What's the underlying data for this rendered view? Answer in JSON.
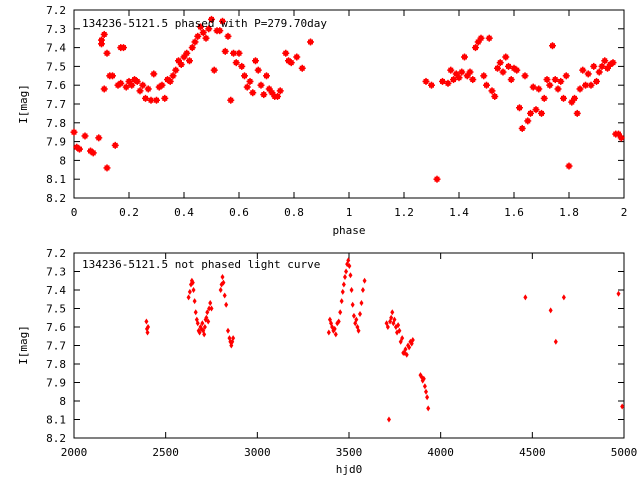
{
  "chart_data": [
    {
      "type": "scatter",
      "title": "134236-5121.5 phased with P=279.70day",
      "xlabel": "phase",
      "ylabel": "I[mag]",
      "xlim": [
        0,
        2
      ],
      "ylim": [
        8.2,
        7.2
      ],
      "y_inverted": true,
      "grid": false,
      "marker": "star",
      "color": "#ff0000",
      "x_ticks": [
        "0",
        "0.2",
        "0.4",
        "0.6",
        "0.8",
        "1",
        "1.2",
        "1.4",
        "1.6",
        "1.8",
        "2"
      ],
      "y_ticks": [
        "7.2",
        "7.3",
        "7.4",
        "7.5",
        "7.6",
        "7.7",
        "7.8",
        "7.9",
        "8",
        "8.1",
        "8.2"
      ],
      "points": [
        [
          0.0,
          7.85
        ],
        [
          0.01,
          7.93
        ],
        [
          0.02,
          7.94
        ],
        [
          0.04,
          7.87
        ],
        [
          0.06,
          7.95
        ],
        [
          0.07,
          7.96
        ],
        [
          0.09,
          7.88
        ],
        [
          0.1,
          7.36
        ],
        [
          0.1,
          7.38
        ],
        [
          0.11,
          7.33
        ],
        [
          0.11,
          7.62
        ],
        [
          0.12,
          7.43
        ],
        [
          0.12,
          8.04
        ],
        [
          0.13,
          7.55
        ],
        [
          0.14,
          7.55
        ],
        [
          0.15,
          7.92
        ],
        [
          0.16,
          7.6
        ],
        [
          0.17,
          7.4
        ],
        [
          0.17,
          7.59
        ],
        [
          0.18,
          7.4
        ],
        [
          0.19,
          7.61
        ],
        [
          0.2,
          7.58
        ],
        [
          0.21,
          7.6
        ],
        [
          0.22,
          7.57
        ],
        [
          0.23,
          7.58
        ],
        [
          0.24,
          7.63
        ],
        [
          0.25,
          7.6
        ],
        [
          0.26,
          7.67
        ],
        [
          0.27,
          7.62
        ],
        [
          0.28,
          7.68
        ],
        [
          0.29,
          7.54
        ],
        [
          0.3,
          7.68
        ],
        [
          0.31,
          7.61
        ],
        [
          0.32,
          7.6
        ],
        [
          0.33,
          7.67
        ],
        [
          0.34,
          7.57
        ],
        [
          0.35,
          7.58
        ],
        [
          0.36,
          7.55
        ],
        [
          0.37,
          7.52
        ],
        [
          0.38,
          7.47
        ],
        [
          0.39,
          7.49
        ],
        [
          0.4,
          7.45
        ],
        [
          0.41,
          7.43
        ],
        [
          0.42,
          7.47
        ],
        [
          0.43,
          7.4
        ],
        [
          0.44,
          7.37
        ],
        [
          0.45,
          7.34
        ],
        [
          0.46,
          7.29
        ],
        [
          0.47,
          7.32
        ],
        [
          0.48,
          7.35
        ],
        [
          0.49,
          7.3
        ],
        [
          0.5,
          7.25
        ],
        [
          0.51,
          7.52
        ],
        [
          0.52,
          7.31
        ],
        [
          0.53,
          7.31
        ],
        [
          0.54,
          7.26
        ],
        [
          0.55,
          7.42
        ],
        [
          0.56,
          7.34
        ],
        [
          0.57,
          7.68
        ],
        [
          0.58,
          7.43
        ],
        [
          0.59,
          7.48
        ],
        [
          0.6,
          7.43
        ],
        [
          0.61,
          7.5
        ],
        [
          0.62,
          7.55
        ],
        [
          0.63,
          7.61
        ],
        [
          0.64,
          7.58
        ],
        [
          0.65,
          7.64
        ],
        [
          0.66,
          7.47
        ],
        [
          0.67,
          7.52
        ],
        [
          0.68,
          7.6
        ],
        [
          0.69,
          7.65
        ],
        [
          0.7,
          7.55
        ],
        [
          0.71,
          7.62
        ],
        [
          0.72,
          7.64
        ],
        [
          0.73,
          7.66
        ],
        [
          0.74,
          7.66
        ],
        [
          0.75,
          7.63
        ],
        [
          0.77,
          7.43
        ],
        [
          0.78,
          7.47
        ],
        [
          0.79,
          7.48
        ],
        [
          0.81,
          7.45
        ],
        [
          0.83,
          7.51
        ],
        [
          0.86,
          7.37
        ],
        [
          1.28,
          7.58
        ],
        [
          1.3,
          7.6
        ],
        [
          1.32,
          8.1
        ],
        [
          1.34,
          7.58
        ],
        [
          1.36,
          7.59
        ],
        [
          1.37,
          7.52
        ],
        [
          1.38,
          7.57
        ],
        [
          1.39,
          7.54
        ],
        [
          1.4,
          7.56
        ],
        [
          1.41,
          7.53
        ],
        [
          1.42,
          7.45
        ],
        [
          1.43,
          7.55
        ],
        [
          1.44,
          7.53
        ],
        [
          1.45,
          7.57
        ],
        [
          1.46,
          7.4
        ],
        [
          1.47,
          7.37
        ],
        [
          1.48,
          7.35
        ],
        [
          1.49,
          7.55
        ],
        [
          1.5,
          7.6
        ],
        [
          1.51,
          7.35
        ],
        [
          1.52,
          7.63
        ],
        [
          1.53,
          7.66
        ],
        [
          1.54,
          7.51
        ],
        [
          1.55,
          7.48
        ],
        [
          1.56,
          7.53
        ],
        [
          1.57,
          7.45
        ],
        [
          1.58,
          7.5
        ],
        [
          1.59,
          7.57
        ],
        [
          1.6,
          7.51
        ],
        [
          1.61,
          7.52
        ],
        [
          1.62,
          7.72
        ],
        [
          1.63,
          7.83
        ],
        [
          1.64,
          7.55
        ],
        [
          1.65,
          7.79
        ],
        [
          1.66,
          7.75
        ],
        [
          1.67,
          7.61
        ],
        [
          1.68,
          7.73
        ],
        [
          1.69,
          7.62
        ],
        [
          1.7,
          7.75
        ],
        [
          1.71,
          7.67
        ],
        [
          1.72,
          7.57
        ],
        [
          1.73,
          7.6
        ],
        [
          1.74,
          7.39
        ],
        [
          1.75,
          7.57
        ],
        [
          1.76,
          7.62
        ],
        [
          1.77,
          7.58
        ],
        [
          1.78,
          7.67
        ],
        [
          1.79,
          7.55
        ],
        [
          1.8,
          8.03
        ],
        [
          1.81,
          7.69
        ],
        [
          1.82,
          7.67
        ],
        [
          1.83,
          7.75
        ],
        [
          1.84,
          7.62
        ],
        [
          1.85,
          7.52
        ],
        [
          1.86,
          7.6
        ],
        [
          1.87,
          7.54
        ],
        [
          1.88,
          7.6
        ],
        [
          1.89,
          7.5
        ],
        [
          1.9,
          7.58
        ],
        [
          1.91,
          7.53
        ],
        [
          1.92,
          7.5
        ],
        [
          1.93,
          7.47
        ],
        [
          1.94,
          7.51
        ],
        [
          1.95,
          7.49
        ],
        [
          1.96,
          7.48
        ],
        [
          1.97,
          7.86
        ],
        [
          1.98,
          7.86
        ],
        [
          1.99,
          7.88
        ]
      ]
    },
    {
      "type": "scatter",
      "title": "134236-5121.5 not phased light curve",
      "xlabel": "hjd0",
      "ylabel": "I[mag]",
      "xlim": [
        2000,
        5000
      ],
      "ylim": [
        8.2,
        7.2
      ],
      "y_inverted": true,
      "grid": false,
      "marker": "diamond",
      "color": "#ff0000",
      "x_ticks": [
        "2000",
        "2500",
        "3000",
        "3500",
        "4000",
        "4500",
        "5000"
      ],
      "y_ticks": [
        "7.2",
        "7.3",
        "7.4",
        "7.5",
        "7.6",
        "7.7",
        "7.8",
        "7.9",
        "8",
        "8.1",
        "8.2"
      ],
      "points": [
        [
          2395,
          7.57
        ],
        [
          2398,
          7.61
        ],
        [
          2401,
          7.63
        ],
        [
          2404,
          7.6
        ],
        [
          2625,
          7.44
        ],
        [
          2632,
          7.41
        ],
        [
          2638,
          7.37
        ],
        [
          2643,
          7.35
        ],
        [
          2648,
          7.36
        ],
        [
          2652,
          7.4
        ],
        [
          2658,
          7.46
        ],
        [
          2664,
          7.52
        ],
        [
          2670,
          7.56
        ],
        [
          2675,
          7.58
        ],
        [
          2680,
          7.62
        ],
        [
          2685,
          7.63
        ],
        [
          2690,
          7.6
        ],
        [
          2695,
          7.61
        ],
        [
          2700,
          7.58
        ],
        [
          2705,
          7.62
        ],
        [
          2710,
          7.64
        ],
        [
          2714,
          7.6
        ],
        [
          2718,
          7.56
        ],
        [
          2722,
          7.55
        ],
        [
          2727,
          7.52
        ],
        [
          2732,
          7.57
        ],
        [
          2737,
          7.5
        ],
        [
          2743,
          7.47
        ],
        [
          2750,
          7.5
        ],
        [
          2800,
          7.4
        ],
        [
          2805,
          7.37
        ],
        [
          2810,
          7.33
        ],
        [
          2815,
          7.36
        ],
        [
          2822,
          7.43
        ],
        [
          2830,
          7.48
        ],
        [
          2840,
          7.62
        ],
        [
          2848,
          7.66
        ],
        [
          2853,
          7.68
        ],
        [
          2858,
          7.7
        ],
        [
          2863,
          7.68
        ],
        [
          2868,
          7.66
        ],
        [
          3390,
          7.63
        ],
        [
          3396,
          7.56
        ],
        [
          3402,
          7.58
        ],
        [
          3408,
          7.6
        ],
        [
          3415,
          7.62
        ],
        [
          3422,
          7.61
        ],
        [
          3428,
          7.64
        ],
        [
          3436,
          7.58
        ],
        [
          3444,
          7.57
        ],
        [
          3452,
          7.52
        ],
        [
          3460,
          7.46
        ],
        [
          3466,
          7.41
        ],
        [
          3472,
          7.37
        ],
        [
          3478,
          7.33
        ],
        [
          3484,
          7.3
        ],
        [
          3490,
          7.26
        ],
        [
          3496,
          7.24
        ],
        [
          3502,
          7.27
        ],
        [
          3508,
          7.32
        ],
        [
          3514,
          7.4
        ],
        [
          3520,
          7.48
        ],
        [
          3527,
          7.54
        ],
        [
          3534,
          7.58
        ],
        [
          3540,
          7.56
        ],
        [
          3546,
          7.6
        ],
        [
          3552,
          7.62
        ],
        [
          3560,
          7.53
        ],
        [
          3568,
          7.47
        ],
        [
          3576,
          7.4
        ],
        [
          3585,
          7.35
        ],
        [
          3705,
          7.58
        ],
        [
          3712,
          7.6
        ],
        [
          3718,
          8.1
        ],
        [
          3724,
          7.57
        ],
        [
          3730,
          7.55
        ],
        [
          3736,
          7.52
        ],
        [
          3742,
          7.58
        ],
        [
          3748,
          7.56
        ],
        [
          3756,
          7.6
        ],
        [
          3762,
          7.63
        ],
        [
          3768,
          7.59
        ],
        [
          3775,
          7.62
        ],
        [
          3782,
          7.68
        ],
        [
          3790,
          7.66
        ],
        [
          3796,
          7.74
        ],
        [
          3802,
          7.74
        ],
        [
          3808,
          7.72
        ],
        [
          3815,
          7.75
        ],
        [
          3822,
          7.7
        ],
        [
          3828,
          7.71
        ],
        [
          3835,
          7.68
        ],
        [
          3842,
          7.69
        ],
        [
          3848,
          7.67
        ],
        [
          3890,
          7.86
        ],
        [
          3896,
          7.87
        ],
        [
          3902,
          7.89
        ],
        [
          3908,
          7.88
        ],
        [
          3914,
          7.92
        ],
        [
          3920,
          7.95
        ],
        [
          3926,
          7.98
        ],
        [
          3932,
          8.04
        ],
        [
          4462,
          7.44
        ],
        [
          4600,
          7.51
        ],
        [
          4628,
          7.68
        ],
        [
          4672,
          7.44
        ],
        [
          4970,
          7.42
        ],
        [
          4990,
          8.03
        ]
      ]
    }
  ]
}
